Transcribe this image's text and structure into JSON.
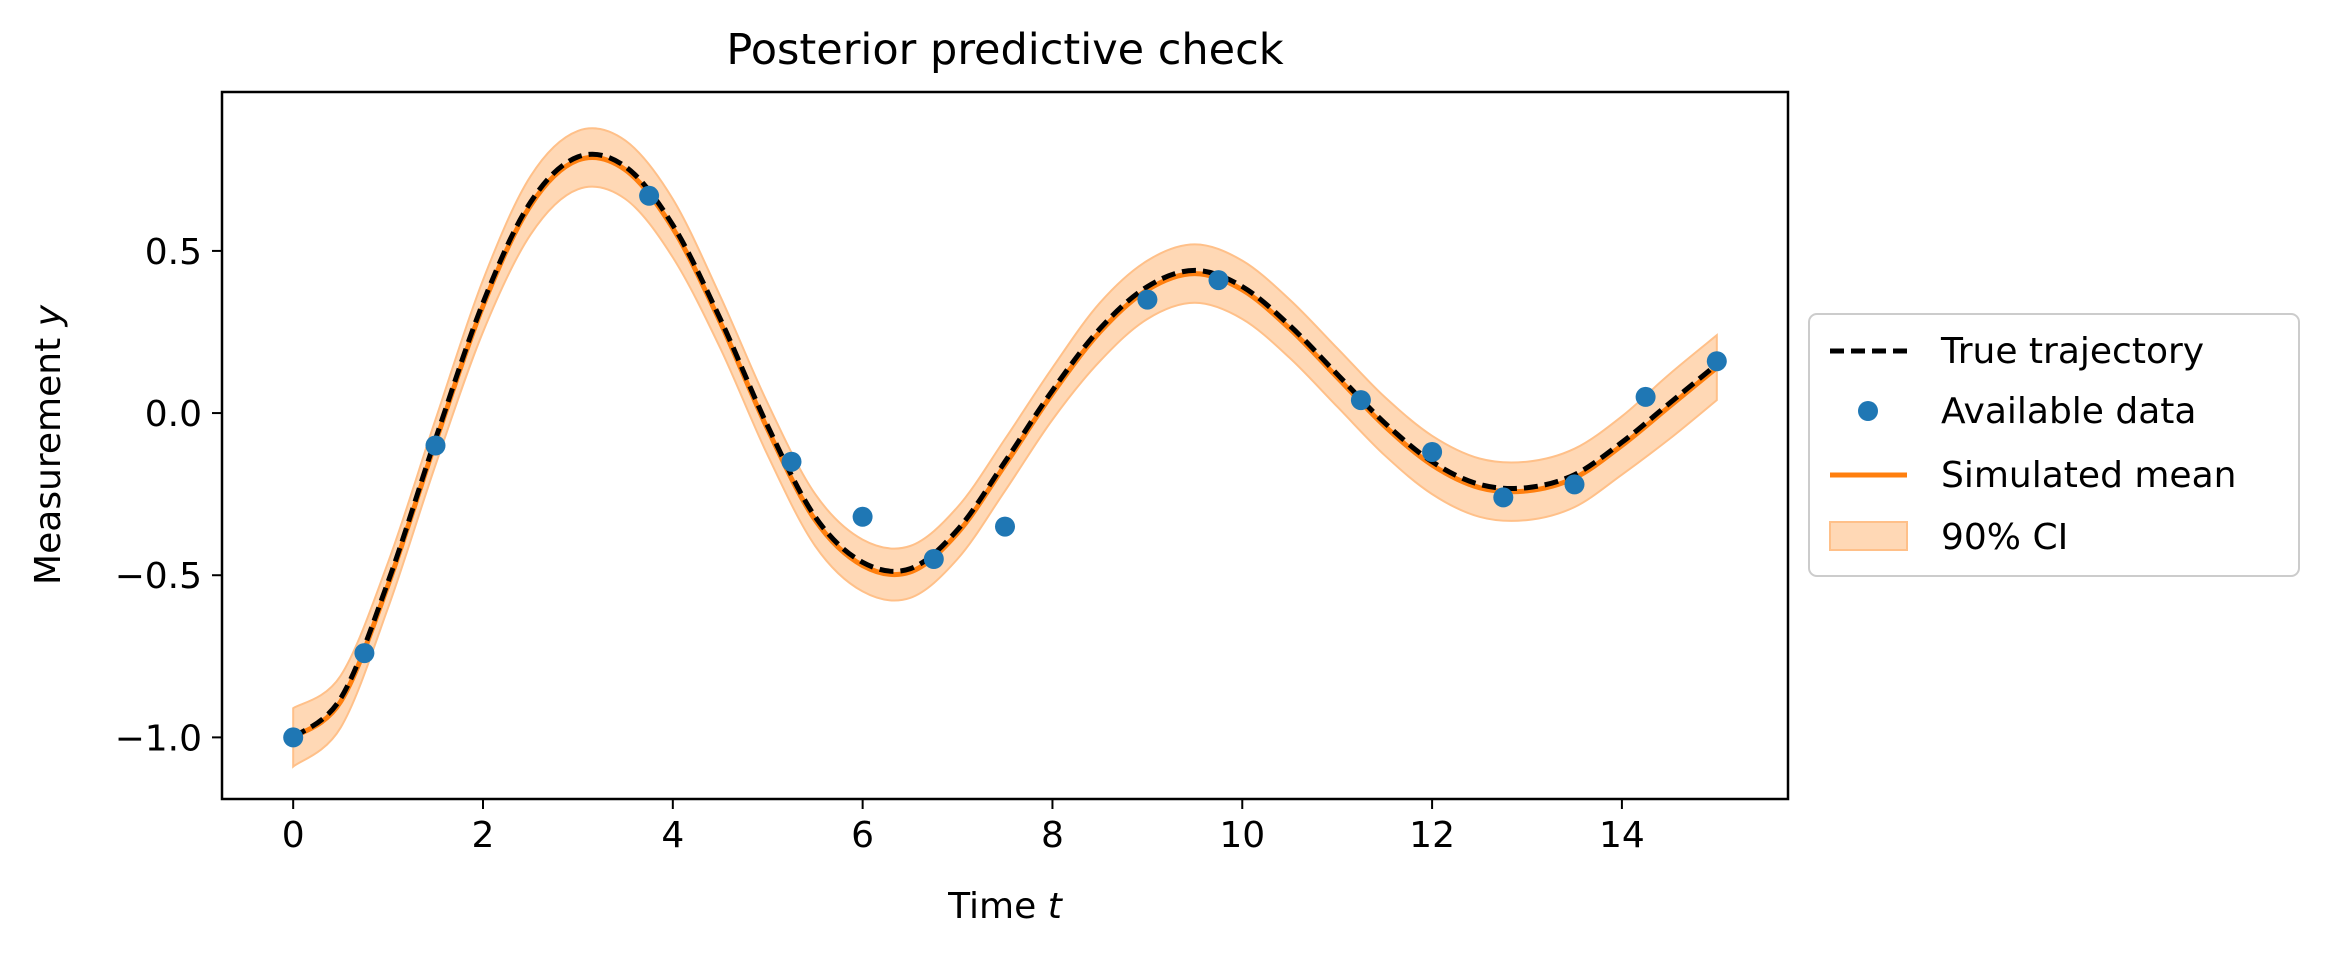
{
  "chart_data": {
    "type": "line",
    "title": "Posterior predictive check",
    "xlabel_main": "Time",
    "xlabel_var": "t",
    "ylabel_main": "Measurement",
    "ylabel_var": "y",
    "xlim": [
      -0.75,
      15.75
    ],
    "ylim": [
      -1.19,
      0.99
    ],
    "xticks": [
      0,
      2,
      4,
      6,
      8,
      10,
      12,
      14
    ],
    "xtick_labels": [
      "0",
      "2",
      "4",
      "6",
      "8",
      "10",
      "12",
      "14"
    ],
    "yticks": [
      -1.0,
      -0.5,
      0.0,
      0.5
    ],
    "ytick_labels": [
      "−1.0",
      "−0.5",
      "0.0",
      "0.5"
    ],
    "grid": false,
    "legend_position": "center-right, outside plot",
    "series": [
      {
        "name": "True trajectory",
        "kind": "dashed-line",
        "color": "#000000",
        "x": [
          0,
          0.5,
          1,
          1.5,
          2,
          2.5,
          3,
          3.5,
          4,
          4.5,
          5,
          5.5,
          6,
          6.5,
          7,
          7.5,
          8,
          8.5,
          9,
          9.5,
          10,
          10.5,
          11,
          11.5,
          12,
          12.5,
          13,
          13.5,
          14,
          14.5,
          15
        ],
        "y": [
          -1.0,
          -0.88,
          -0.52,
          -0.08,
          0.34,
          0.65,
          0.79,
          0.76,
          0.58,
          0.29,
          -0.04,
          -0.32,
          -0.46,
          -0.48,
          -0.36,
          -0.15,
          0.07,
          0.26,
          0.39,
          0.44,
          0.39,
          0.27,
          0.12,
          -0.03,
          -0.15,
          -0.22,
          -0.23,
          -0.19,
          -0.09,
          0.03,
          0.15
        ]
      },
      {
        "name": "Available data",
        "kind": "points",
        "color": "#1f77b4",
        "x": [
          0,
          0.75,
          1.5,
          3.75,
          5.25,
          6.0,
          6.75,
          7.5,
          9.0,
          9.75,
          11.25,
          12.0,
          12.75,
          13.5,
          14.25,
          15.0
        ],
        "y": [
          -1.0,
          -0.74,
          -0.1,
          0.67,
          -0.15,
          -0.32,
          -0.45,
          -0.35,
          0.35,
          0.41,
          0.04,
          -0.12,
          -0.26,
          -0.22,
          0.05,
          0.16
        ]
      },
      {
        "name": "Simulated mean",
        "kind": "line",
        "color": "#ff7f0e",
        "x": [
          0,
          0.5,
          1,
          1.5,
          2,
          2.5,
          3,
          3.5,
          4,
          4.5,
          5,
          5.5,
          6,
          6.5,
          7,
          7.5,
          8,
          8.5,
          9,
          9.5,
          10,
          10.5,
          11,
          11.5,
          12,
          12.5,
          13,
          13.5,
          14,
          14.5,
          15
        ],
        "y": [
          -1.0,
          -0.89,
          -0.53,
          -0.09,
          0.33,
          0.64,
          0.78,
          0.75,
          0.57,
          0.28,
          -0.05,
          -0.33,
          -0.47,
          -0.49,
          -0.37,
          -0.16,
          0.06,
          0.25,
          0.38,
          0.43,
          0.38,
          0.26,
          0.11,
          -0.04,
          -0.16,
          -0.23,
          -0.24,
          -0.2,
          -0.1,
          0.02,
          0.14
        ]
      },
      {
        "name": "90% CI",
        "kind": "band",
        "color": "#ff7f0e",
        "half_width": [
          0.09,
          0.08,
          0.07,
          0.07,
          0.08,
          0.09,
          0.09,
          0.09,
          0.09,
          0.08,
          0.08,
          0.08,
          0.08,
          0.08,
          0.08,
          0.08,
          0.08,
          0.09,
          0.09,
          0.09,
          0.09,
          0.09,
          0.09,
          0.09,
          0.09,
          0.09,
          0.09,
          0.09,
          0.09,
          0.1,
          0.1
        ]
      }
    ]
  }
}
